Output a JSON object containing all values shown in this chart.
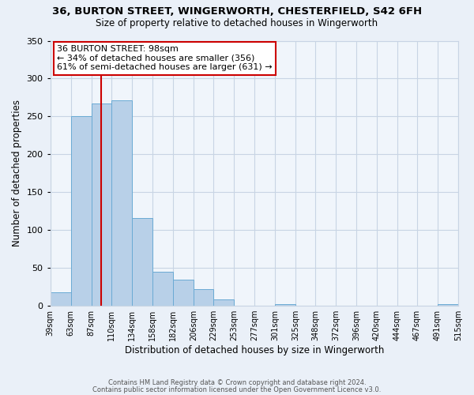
{
  "title": "36, BURTON STREET, WINGERWORTH, CHESTERFIELD, S42 6FH",
  "subtitle": "Size of property relative to detached houses in Wingerworth",
  "xlabel": "Distribution of detached houses by size in Wingerworth",
  "ylabel": "Number of detached properties",
  "bar_edges": [
    39,
    63,
    87,
    110,
    134,
    158,
    182,
    206,
    229,
    253,
    277,
    301,
    325,
    348,
    372,
    396,
    420,
    444,
    467,
    491,
    515
  ],
  "bar_heights": [
    18,
    250,
    267,
    271,
    116,
    45,
    35,
    22,
    8,
    0,
    0,
    2,
    0,
    0,
    0,
    0,
    0,
    0,
    0,
    2
  ],
  "bar_color": "#b8d0e8",
  "bar_edge_color": "#6aaad4",
  "vline_x": 98,
  "vline_color": "#cc0000",
  "annotation_title": "36 BURTON STREET: 98sqm",
  "annotation_line1": "← 34% of detached houses are smaller (356)",
  "annotation_line2": "61% of semi-detached houses are larger (631) →",
  "annotation_box_color": "#ffffff",
  "annotation_box_edge": "#cc0000",
  "ylim": [
    0,
    350
  ],
  "yticks": [
    0,
    50,
    100,
    150,
    200,
    250,
    300,
    350
  ],
  "footer1": "Contains HM Land Registry data © Crown copyright and database right 2024.",
  "footer2": "Contains public sector information licensed under the Open Government Licence v3.0.",
  "bg_color": "#eaf0f8",
  "plot_bg_color": "#f0f5fb",
  "grid_color": "#c8d4e4",
  "tick_labels": [
    "39sqm",
    "63sqm",
    "87sqm",
    "110sqm",
    "134sqm",
    "158sqm",
    "182sqm",
    "206sqm",
    "229sqm",
    "253sqm",
    "277sqm",
    "301sqm",
    "325sqm",
    "348sqm",
    "372sqm",
    "396sqm",
    "420sqm",
    "444sqm",
    "467sqm",
    "491sqm",
    "515sqm"
  ]
}
